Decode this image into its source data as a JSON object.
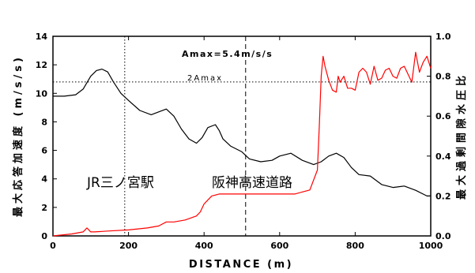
{
  "chart_data": {
    "type": "line",
    "xlabel": "DISTANCE (m)",
    "ylabel_left": "最大応答加速度 (m/s/s)",
    "ylabel_right": "最大過剰間隙水圧比",
    "xlim": [
      0,
      1000
    ],
    "ylim_left": [
      0,
      14
    ],
    "ylim_right": [
      0,
      1.0
    ],
    "x_ticks": [
      0,
      200,
      400,
      600,
      800,
      1000
    ],
    "y_ticks_left": [
      0,
      2,
      4,
      6,
      8,
      10,
      12,
      14
    ],
    "y_ticks_right": [
      "0.0",
      "0.2",
      "0.4",
      "0.6",
      "0.8",
      "1.0"
    ],
    "grid": false,
    "series": [
      {
        "axis": "left",
        "color": "#000000",
        "x": [
          0,
          30,
          60,
          80,
          100,
          115,
          130,
          145,
          160,
          180,
          200,
          230,
          260,
          280,
          300,
          320,
          340,
          360,
          380,
          395,
          410,
          430,
          440,
          450,
          470,
          500,
          520,
          550,
          580,
          600,
          630,
          660,
          690,
          710,
          730,
          750,
          770,
          790,
          810,
          840,
          870,
          900,
          930,
          960,
          990,
          1000
        ],
        "y": [
          9.8,
          9.8,
          9.9,
          10.3,
          11.2,
          11.6,
          11.7,
          11.5,
          10.8,
          10.0,
          9.5,
          8.8,
          8.5,
          8.7,
          8.9,
          8.4,
          7.5,
          6.8,
          6.5,
          6.9,
          7.6,
          7.8,
          7.4,
          6.8,
          6.3,
          5.9,
          5.4,
          5.2,
          5.3,
          5.6,
          5.8,
          5.3,
          5.0,
          5.2,
          5.6,
          5.8,
          5.5,
          4.8,
          4.3,
          4.2,
          3.6,
          3.4,
          3.5,
          3.2,
          2.8,
          2.8
        ]
      },
      {
        "axis": "right",
        "color": "#ff0000",
        "x": [
          0,
          50,
          80,
          90,
          100,
          110,
          150,
          200,
          250,
          280,
          300,
          320,
          350,
          380,
          390,
          400,
          420,
          440,
          460,
          500,
          560,
          600,
          640,
          660,
          680,
          700,
          705,
          710,
          715,
          720,
          730,
          740,
          750,
          755,
          760,
          770,
          780,
          790,
          800,
          810,
          820,
          830,
          840,
          850,
          860,
          870,
          880,
          890,
          900,
          910,
          920,
          930,
          940,
          950,
          960,
          970,
          980,
          990,
          1000
        ],
        "y": [
          0.0,
          0.01,
          0.02,
          0.04,
          0.02,
          0.02,
          0.025,
          0.03,
          0.04,
          0.05,
          0.07,
          0.07,
          0.08,
          0.1,
          0.12,
          0.16,
          0.2,
          0.21,
          0.21,
          0.21,
          0.21,
          0.21,
          0.21,
          0.22,
          0.23,
          0.33,
          0.55,
          0.8,
          0.9,
          0.85,
          0.78,
          0.73,
          0.72,
          0.8,
          0.77,
          0.8,
          0.74,
          0.74,
          0.73,
          0.82,
          0.84,
          0.82,
          0.76,
          0.85,
          0.78,
          0.79,
          0.83,
          0.84,
          0.8,
          0.79,
          0.84,
          0.85,
          0.81,
          0.77,
          0.92,
          0.82,
          0.87,
          0.9,
          0.84
        ]
      }
    ],
    "annotations": {
      "amax": "Amax=5.4m/s/s",
      "amax2": "2Amax",
      "station": "JR三ノ宮駅",
      "expressway": "阪神高速道路"
    },
    "reference_lines": {
      "amax2_y": 10.8,
      "vertical_dotted_x": 190,
      "vertical_dashed_x": 510
    }
  }
}
